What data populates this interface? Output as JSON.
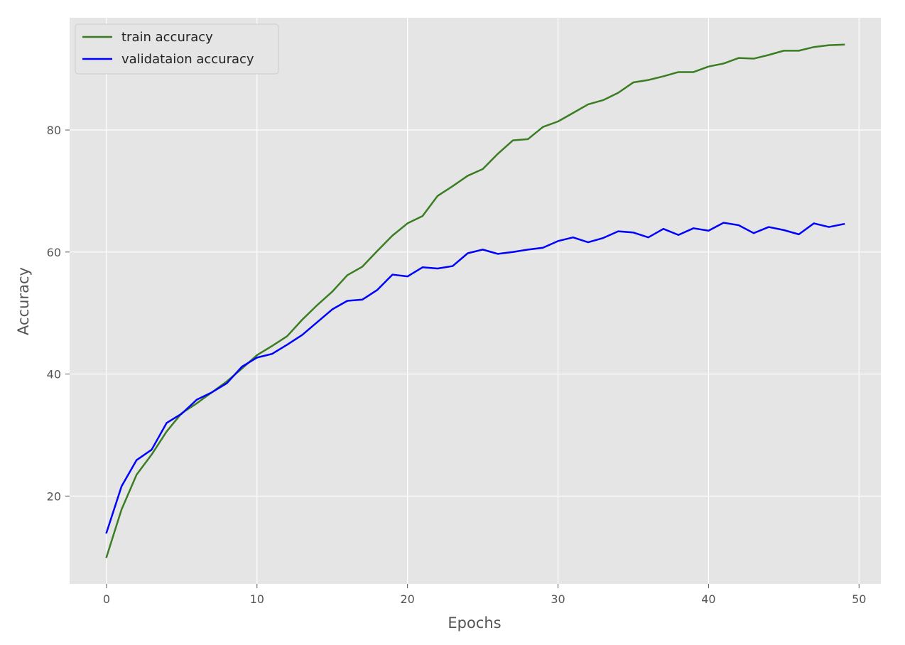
{
  "chart_data": {
    "type": "line",
    "title": "",
    "xlabel": "Epochs",
    "ylabel": "Accuracy",
    "xlim": [
      -2.45,
      51.45
    ],
    "ylim": [
      5.6,
      98.4
    ],
    "xticks": [
      "0",
      "10",
      "20",
      "30",
      "40",
      "50"
    ],
    "yticks": [
      "20",
      "40",
      "60",
      "80"
    ],
    "xtick_values": [
      0,
      10,
      20,
      30,
      40,
      50
    ],
    "ytick_values": [
      20,
      40,
      60,
      80
    ],
    "grid": true,
    "legend_position": "top-left",
    "x": [
      0,
      1,
      2,
      3,
      4,
      5,
      6,
      7,
      8,
      9,
      10,
      11,
      12,
      13,
      14,
      15,
      16,
      17,
      18,
      19,
      20,
      21,
      22,
      23,
      24,
      25,
      26,
      27,
      28,
      29,
      30,
      31,
      32,
      33,
      34,
      35,
      36,
      37,
      38,
      39,
      40,
      41,
      42,
      43,
      44,
      45,
      46,
      47,
      48,
      49
    ],
    "series": [
      {
        "name": "train accuracy",
        "color": "#3a7d22",
        "values": [
          10.0,
          17.8,
          23.5,
          26.8,
          30.6,
          33.6,
          35.2,
          37.0,
          38.8,
          40.9,
          43.1,
          44.6,
          46.2,
          48.9,
          51.3,
          53.5,
          56.2,
          57.6,
          60.2,
          62.7,
          64.7,
          65.9,
          69.2,
          70.8,
          72.5,
          73.6,
          76.1,
          78.3,
          78.5,
          80.5,
          81.4,
          82.8,
          84.2,
          84.9,
          86.1,
          87.8,
          88.2,
          88.8,
          89.5,
          89.5,
          90.4,
          90.9,
          91.8,
          91.7,
          92.3,
          93.0,
          93.0,
          93.6,
          93.9,
          94.0
        ]
      },
      {
        "name": "validataion accuracy",
        "color": "#0000ff",
        "values": [
          14.0,
          21.6,
          25.9,
          27.6,
          32.0,
          33.5,
          35.8,
          37.0,
          38.5,
          41.2,
          42.7,
          43.3,
          44.8,
          46.4,
          48.5,
          50.6,
          52.0,
          52.2,
          53.8,
          56.3,
          56.0,
          57.5,
          57.3,
          57.7,
          59.8,
          60.4,
          59.7,
          60.0,
          60.4,
          60.7,
          61.8,
          62.4,
          61.6,
          62.3,
          63.4,
          63.2,
          62.4,
          63.8,
          62.8,
          63.9,
          63.5,
          64.8,
          64.4,
          63.1,
          64.1,
          63.6,
          62.9,
          64.7,
          64.1,
          64.6
        ]
      }
    ]
  }
}
